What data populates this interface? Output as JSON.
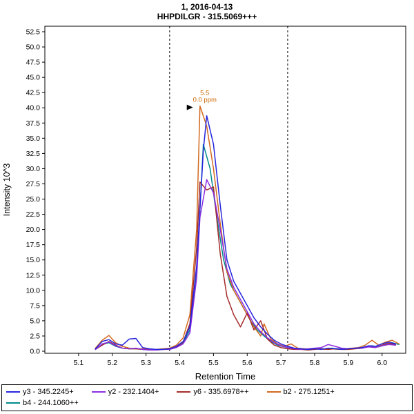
{
  "header": {
    "title_line1": "1, 2016-04-13",
    "title_line2": "HHPDILGR - 315.5069+++"
  },
  "chart_data": {
    "type": "line",
    "title": "1, 2016-04-13",
    "subtitle": "HHPDILGR - 315.5069+++",
    "xlabel": "Retention Time",
    "ylabel": "Intensity 10^3",
    "xlim": [
      5.0,
      6.07
    ],
    "ylim": [
      0,
      52.5
    ],
    "x_ticks": [
      5.1,
      5.2,
      5.3,
      5.4,
      5.5,
      5.6,
      5.7,
      5.8,
      5.9,
      6.0
    ],
    "y_tick_step": 2.5,
    "grid": false,
    "legend_position": "bottom",
    "integration_boundaries": [
      5.37,
      5.72
    ],
    "peak_annotation": {
      "x": 5.47,
      "y": 40.3,
      "lines": [
        "5.5",
        "0.0 ppm"
      ],
      "color": "#cc6600"
    },
    "series": [
      {
        "name": "y3 - 345.2245+",
        "color": "#2525dd",
        "points": [
          [
            5.15,
            0.4
          ],
          [
            5.17,
            1.6
          ],
          [
            5.19,
            1.9
          ],
          [
            5.21,
            1.2
          ],
          [
            5.23,
            1.0
          ],
          [
            5.25,
            2.0
          ],
          [
            5.27,
            2.1
          ],
          [
            5.29,
            0.6
          ],
          [
            5.31,
            0.4
          ],
          [
            5.33,
            0.3
          ],
          [
            5.35,
            0.3
          ],
          [
            5.37,
            0.4
          ],
          [
            5.39,
            0.8
          ],
          [
            5.41,
            1.6
          ],
          [
            5.43,
            4.0
          ],
          [
            5.45,
            14.0
          ],
          [
            5.47,
            33.0
          ],
          [
            5.48,
            38.7
          ],
          [
            5.5,
            34.0
          ],
          [
            5.52,
            24.0
          ],
          [
            5.54,
            15.0
          ],
          [
            5.56,
            11.5
          ],
          [
            5.58,
            9.5
          ],
          [
            5.6,
            7.5
          ],
          [
            5.62,
            5.5
          ],
          [
            5.64,
            4.0
          ],
          [
            5.66,
            2.8
          ],
          [
            5.68,
            1.8
          ],
          [
            5.7,
            1.2
          ],
          [
            5.72,
            0.8
          ],
          [
            5.74,
            0.5
          ],
          [
            5.76,
            0.4
          ],
          [
            5.78,
            0.3
          ],
          [
            5.8,
            0.4
          ],
          [
            5.82,
            0.3
          ],
          [
            5.84,
            0.5
          ],
          [
            5.86,
            0.4
          ],
          [
            5.88,
            0.3
          ],
          [
            5.9,
            0.4
          ],
          [
            5.92,
            0.5
          ],
          [
            5.94,
            0.6
          ],
          [
            5.96,
            0.9
          ],
          [
            5.98,
            0.8
          ],
          [
            6.0,
            1.2
          ],
          [
            6.02,
            1.5
          ],
          [
            6.04,
            1.2
          ]
        ]
      },
      {
        "name": "y2 - 232.1404+",
        "color": "#8a2be2",
        "points": [
          [
            5.15,
            0.3
          ],
          [
            5.17,
            1.2
          ],
          [
            5.19,
            1.5
          ],
          [
            5.21,
            0.9
          ],
          [
            5.23,
            0.5
          ],
          [
            5.25,
            0.4
          ],
          [
            5.27,
            0.5
          ],
          [
            5.29,
            0.3
          ],
          [
            5.31,
            0.2
          ],
          [
            5.33,
            0.2
          ],
          [
            5.35,
            0.3
          ],
          [
            5.37,
            0.3
          ],
          [
            5.39,
            0.6
          ],
          [
            5.41,
            1.2
          ],
          [
            5.43,
            3.0
          ],
          [
            5.45,
            12.0
          ],
          [
            5.46,
            22.0
          ],
          [
            5.48,
            28.2
          ],
          [
            5.5,
            26.0
          ],
          [
            5.52,
            20.0
          ],
          [
            5.54,
            13.5
          ],
          [
            5.56,
            10.5
          ],
          [
            5.58,
            8.5
          ],
          [
            5.6,
            6.5
          ],
          [
            5.62,
            4.5
          ],
          [
            5.64,
            3.2
          ],
          [
            5.66,
            2.2
          ],
          [
            5.68,
            1.4
          ],
          [
            5.7,
            0.9
          ],
          [
            5.72,
            0.6
          ],
          [
            5.74,
            0.4
          ],
          [
            5.76,
            0.3
          ],
          [
            5.78,
            0.4
          ],
          [
            5.8,
            0.5
          ],
          [
            5.82,
            0.6
          ],
          [
            5.84,
            1.1
          ],
          [
            5.86,
            0.8
          ],
          [
            5.88,
            0.5
          ],
          [
            5.9,
            0.4
          ],
          [
            5.92,
            0.5
          ],
          [
            5.94,
            0.5
          ],
          [
            5.96,
            0.7
          ],
          [
            5.98,
            0.6
          ],
          [
            6.0,
            0.9
          ],
          [
            6.02,
            1.1
          ],
          [
            6.04,
            1.0
          ]
        ]
      },
      {
        "name": "y6 - 335.6978++",
        "color": "#a52a2a",
        "points": [
          [
            5.15,
            0.3
          ],
          [
            5.17,
            1.0
          ],
          [
            5.19,
            1.6
          ],
          [
            5.21,
            1.0
          ],
          [
            5.23,
            0.5
          ],
          [
            5.25,
            0.4
          ],
          [
            5.27,
            0.4
          ],
          [
            5.29,
            0.3
          ],
          [
            5.31,
            0.3
          ],
          [
            5.33,
            0.2
          ],
          [
            5.35,
            0.3
          ],
          [
            5.37,
            0.4
          ],
          [
            5.39,
            0.7
          ],
          [
            5.41,
            1.5
          ],
          [
            5.43,
            4.5
          ],
          [
            5.45,
            17.0
          ],
          [
            5.46,
            27.8
          ],
          [
            5.48,
            26.5
          ],
          [
            5.5,
            27.0
          ],
          [
            5.52,
            16.0
          ],
          [
            5.54,
            9.0
          ],
          [
            5.56,
            6.0
          ],
          [
            5.58,
            4.0
          ],
          [
            5.6,
            6.3
          ],
          [
            5.62,
            3.5
          ],
          [
            5.64,
            5.0
          ],
          [
            5.66,
            2.0
          ],
          [
            5.68,
            1.0
          ],
          [
            5.7,
            0.6
          ],
          [
            5.72,
            0.4
          ],
          [
            5.74,
            0.3
          ],
          [
            5.76,
            0.3
          ],
          [
            5.78,
            0.2
          ],
          [
            5.8,
            0.3
          ],
          [
            5.82,
            0.4
          ],
          [
            5.84,
            0.3
          ],
          [
            5.86,
            0.4
          ],
          [
            5.88,
            0.3
          ],
          [
            5.9,
            0.3
          ],
          [
            5.92,
            0.4
          ],
          [
            5.94,
            0.5
          ],
          [
            5.96,
            0.8
          ],
          [
            5.98,
            0.6
          ],
          [
            6.0,
            1.0
          ],
          [
            6.02,
            1.3
          ],
          [
            6.04,
            1.1
          ]
        ]
      },
      {
        "name": "b2 - 275.1251+",
        "color": "#d2691e",
        "points": [
          [
            5.15,
            0.5
          ],
          [
            5.17,
            1.8
          ],
          [
            5.19,
            2.6
          ],
          [
            5.21,
            1.4
          ],
          [
            5.23,
            0.8
          ],
          [
            5.25,
            0.5
          ],
          [
            5.27,
            0.4
          ],
          [
            5.29,
            0.4
          ],
          [
            5.31,
            0.3
          ],
          [
            5.33,
            0.3
          ],
          [
            5.35,
            0.4
          ],
          [
            5.37,
            0.5
          ],
          [
            5.39,
            1.0
          ],
          [
            5.41,
            2.2
          ],
          [
            5.43,
            6.0
          ],
          [
            5.45,
            20.0
          ],
          [
            5.46,
            40.3
          ],
          [
            5.48,
            37.0
          ],
          [
            5.5,
            30.0
          ],
          [
            5.52,
            21.0
          ],
          [
            5.54,
            13.0
          ],
          [
            5.56,
            10.0
          ],
          [
            5.58,
            8.0
          ],
          [
            5.6,
            6.0
          ],
          [
            5.62,
            4.0
          ],
          [
            5.64,
            2.5
          ],
          [
            5.65,
            4.5
          ],
          [
            5.67,
            2.0
          ],
          [
            5.69,
            1.2
          ],
          [
            5.71,
            0.8
          ],
          [
            5.73,
            1.2
          ],
          [
            5.75,
            0.5
          ],
          [
            5.77,
            0.4
          ],
          [
            5.79,
            0.3
          ],
          [
            5.81,
            0.4
          ],
          [
            5.83,
            0.3
          ],
          [
            5.85,
            0.4
          ],
          [
            5.87,
            0.3
          ],
          [
            5.89,
            0.4
          ],
          [
            5.91,
            0.5
          ],
          [
            5.93,
            0.6
          ],
          [
            5.95,
            1.0
          ],
          [
            5.97,
            1.8
          ],
          [
            5.99,
            1.0
          ],
          [
            6.01,
            1.5
          ],
          [
            6.03,
            1.8
          ],
          [
            6.05,
            1.2
          ]
        ]
      },
      {
        "name": "b4 - 244.1060++",
        "color": "#008b8b",
        "points": [
          [
            5.15,
            0.3
          ],
          [
            5.17,
            1.1
          ],
          [
            5.19,
            1.4
          ],
          [
            5.21,
            0.8
          ],
          [
            5.23,
            0.5
          ],
          [
            5.25,
            0.4
          ],
          [
            5.27,
            0.4
          ],
          [
            5.29,
            0.3
          ],
          [
            5.31,
            0.2
          ],
          [
            5.33,
            0.2
          ],
          [
            5.35,
            0.3
          ],
          [
            5.37,
            0.4
          ],
          [
            5.39,
            0.7
          ],
          [
            5.41,
            1.4
          ],
          [
            5.43,
            3.5
          ],
          [
            5.45,
            13.0
          ],
          [
            5.47,
            34.0
          ],
          [
            5.49,
            30.0
          ],
          [
            5.51,
            22.0
          ],
          [
            5.53,
            15.0
          ],
          [
            5.55,
            11.0
          ],
          [
            5.57,
            9.0
          ],
          [
            5.59,
            7.0
          ],
          [
            5.61,
            5.0
          ],
          [
            5.63,
            3.5
          ],
          [
            5.65,
            2.5
          ],
          [
            5.67,
            1.6
          ],
          [
            5.69,
            1.0
          ],
          [
            5.71,
            0.7
          ],
          [
            5.73,
            0.5
          ],
          [
            5.75,
            0.4
          ],
          [
            5.77,
            0.3
          ],
          [
            5.79,
            0.3
          ],
          [
            5.81,
            0.4
          ],
          [
            5.83,
            0.4
          ],
          [
            5.85,
            0.5
          ],
          [
            5.87,
            0.4
          ],
          [
            5.89,
            0.3
          ],
          [
            5.91,
            0.4
          ],
          [
            5.93,
            0.5
          ],
          [
            5.95,
            0.7
          ],
          [
            5.97,
            0.9
          ],
          [
            5.99,
            0.7
          ],
          [
            6.01,
            1.1
          ],
          [
            6.03,
            1.4
          ],
          [
            6.05,
            1.1
          ]
        ]
      }
    ]
  }
}
